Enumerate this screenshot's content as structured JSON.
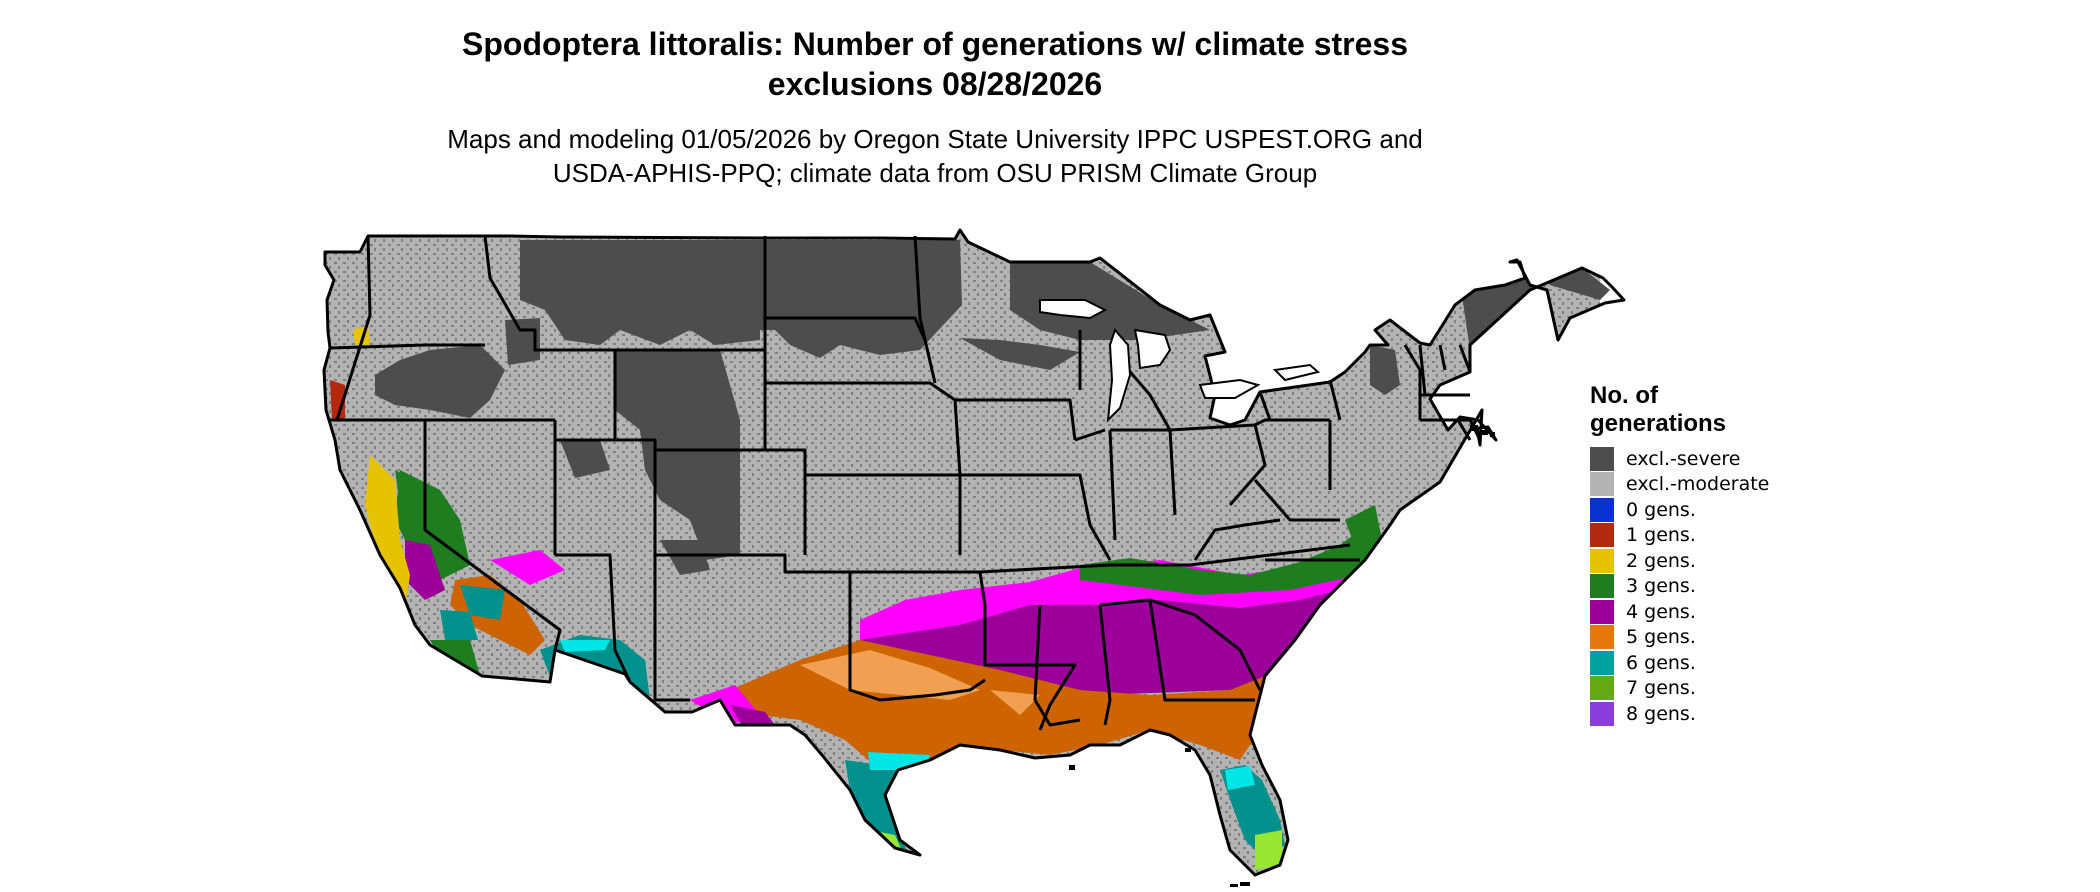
{
  "title": {
    "line1": "Spodoptera littoralis: Number of generations w/ climate stress",
    "line2": "exclusions 08/28/2026"
  },
  "subtitle": {
    "line1": "Maps and modeling 01/05/2026 by Oregon State University IPPC USPEST.ORG and",
    "line2": "USDA-APHIS-PPQ; climate data from OSU PRISM Climate Group"
  },
  "legend": {
    "title_line1": "No. of",
    "title_line2": "generations",
    "placement": "right",
    "items": [
      {
        "label": "excl.-severe",
        "color": "#4d4d4d"
      },
      {
        "label": "excl.-moderate",
        "color": "#b3b3b3"
      },
      {
        "label": "0 gens.",
        "color": "#0a32d2"
      },
      {
        "label": "1 gens.",
        "color": "#b4280f"
      },
      {
        "label": "2 gens.",
        "color": "#e6c300"
      },
      {
        "label": "3 gens.",
        "color": "#1e7d1e"
      },
      {
        "label": "4 gens.",
        "color": "#9b009b"
      },
      {
        "label": "5 gens.",
        "color": "#e6780a"
      },
      {
        "label": "6 gens.",
        "color": "#00a0a0"
      },
      {
        "label": "7 gens.",
        "color": "#64aa14"
      },
      {
        "label": "8 gens.",
        "color": "#8c3cdc"
      }
    ]
  },
  "map": {
    "region": "Contiguous United States",
    "colors": {
      "severe": "#4d4d4d",
      "moderate": "#b3b3b3",
      "magenta": "#ff00ff",
      "purple": "#9b009b",
      "orange": "#cd6400",
      "light_orange": "#f0a050",
      "teal": "#00918c",
      "cyan": "#00e6e6",
      "green": "#1e7d1e",
      "lime": "#96e632",
      "yellow": "#e6c300",
      "red": "#b4280f",
      "border": "#000000"
    }
  }
}
